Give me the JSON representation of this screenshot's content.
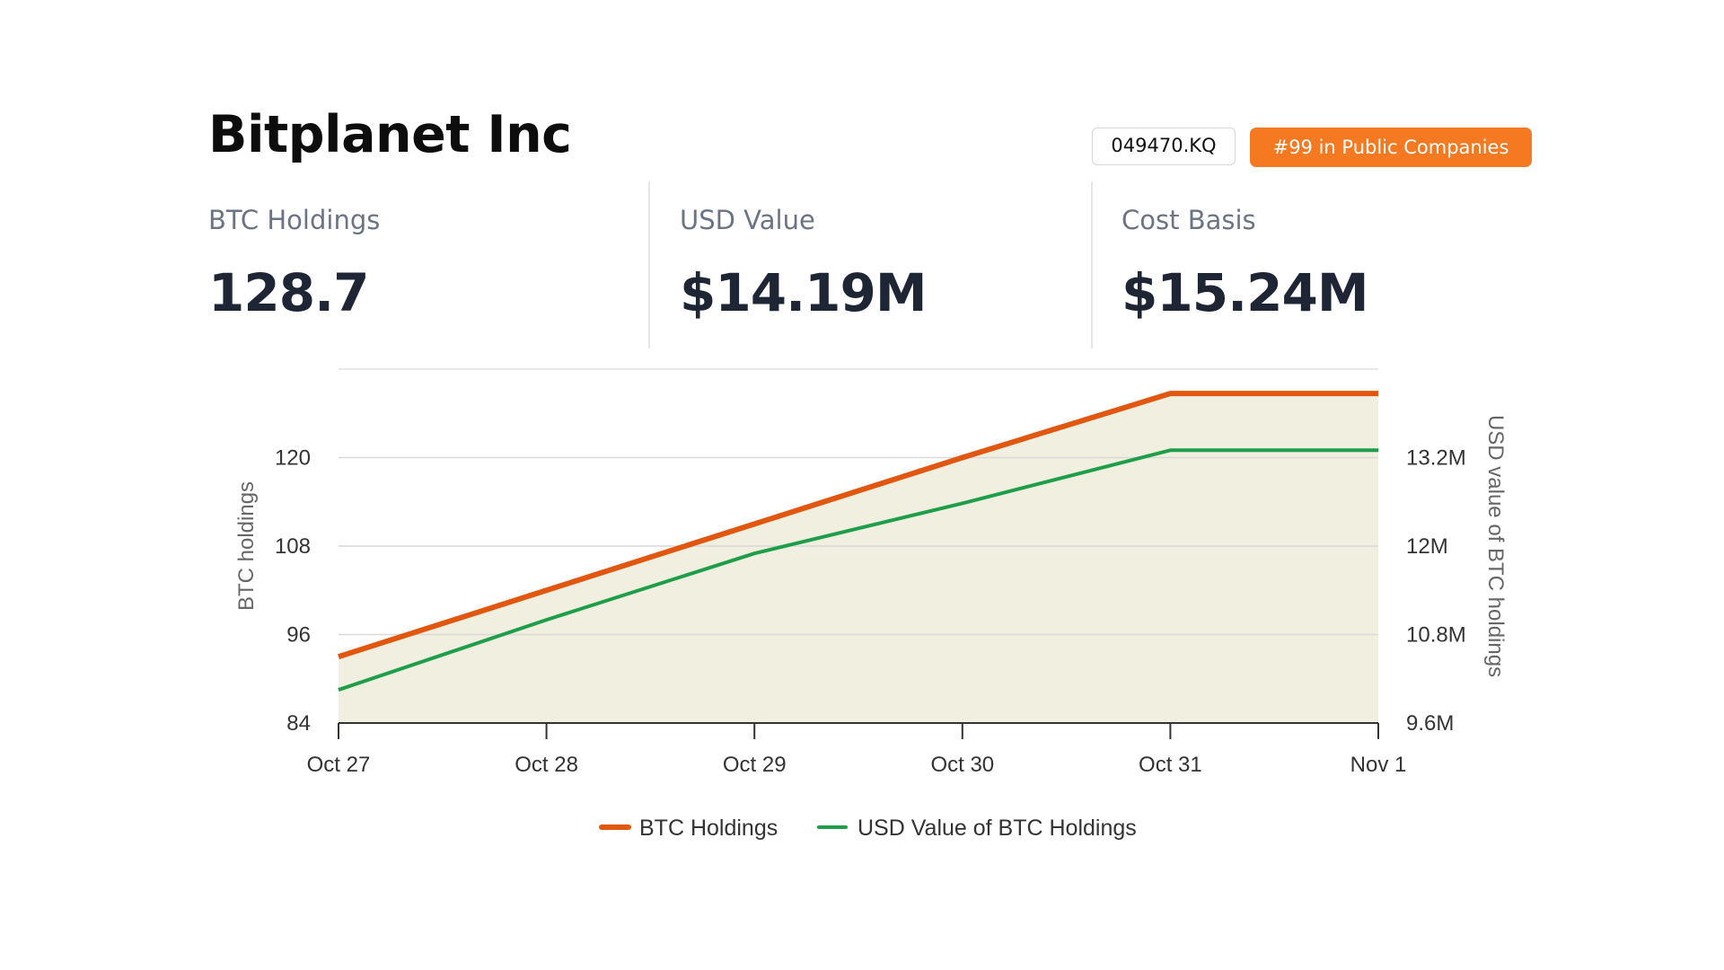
{
  "header": {
    "title": "Bitplanet Inc",
    "ticker": "049470.KQ",
    "rank": "#99 in Public Companies",
    "rank_color": "#f47920"
  },
  "stats": [
    {
      "label": "BTC Holdings",
      "value": "128.7"
    },
    {
      "label": "USD Value",
      "value": "$14.19M"
    },
    {
      "label": "Cost Basis",
      "value": "$15.24M"
    }
  ],
  "chart_data": {
    "type": "line",
    "x": [
      "Oct 27",
      "Oct 28",
      "Oct 29",
      "Oct 30",
      "Oct 31",
      "Nov 1"
    ],
    "left_axis": {
      "title": "BTC holdings",
      "ticks": [
        84,
        96,
        108,
        120
      ],
      "tick_labels": [
        "84",
        "96",
        "108",
        "120"
      ],
      "range": [
        84,
        132
      ]
    },
    "right_axis": {
      "title": "USD value of BTC holdings",
      "ticks": [
        9600000,
        10800000,
        12000000,
        13200000
      ],
      "tick_labels": [
        "9.6M",
        "10.8M",
        "12M",
        "13.2M"
      ],
      "range": [
        9600000,
        14400000
      ]
    },
    "series": [
      {
        "name": "BTC Holdings",
        "axis": "left",
        "color": "#e2570f",
        "area_fill": "#f1efdf",
        "values": [
          93,
          102,
          111,
          120,
          128.7,
          128.7
        ]
      },
      {
        "name": "USD Value of BTC Holdings",
        "axis": "right",
        "color": "#1f9e4a",
        "values": [
          10050000,
          11000000,
          11900000,
          12580000,
          13300000,
          13300000
        ]
      }
    ],
    "grid": true,
    "legend_position": "bottom"
  }
}
